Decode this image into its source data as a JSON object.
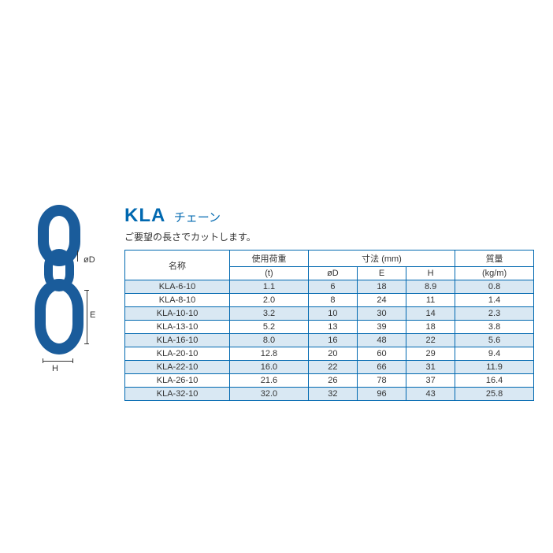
{
  "title": {
    "code": "KLA",
    "sub": "チェーン"
  },
  "subtitle": "ご要望の長さでカットします。",
  "diagram": {
    "phiD": "øD",
    "E": "E",
    "H": "H"
  },
  "table": {
    "headers": {
      "name": "名称",
      "load": "使用荷重",
      "load_unit": "(t)",
      "dims": "寸法 (mm)",
      "phiD": "øD",
      "E": "E",
      "H": "H",
      "mass": "質量",
      "mass_unit": "(kg/m)"
    },
    "rows": [
      {
        "name": "KLA-6-10",
        "load": "1.1",
        "d": "6",
        "e": "18",
        "h": "8.9",
        "mass": "0.8"
      },
      {
        "name": "KLA-8-10",
        "load": "2.0",
        "d": "8",
        "e": "24",
        "h": "11",
        "mass": "1.4"
      },
      {
        "name": "KLA-10-10",
        "load": "3.2",
        "d": "10",
        "e": "30",
        "h": "14",
        "mass": "2.3"
      },
      {
        "name": "KLA-13-10",
        "load": "5.2",
        "d": "13",
        "e": "39",
        "h": "18",
        "mass": "3.8"
      },
      {
        "name": "KLA-16-10",
        "load": "8.0",
        "d": "16",
        "e": "48",
        "h": "22",
        "mass": "5.6"
      },
      {
        "name": "KLA-20-10",
        "load": "12.8",
        "d": "20",
        "e": "60",
        "h": "29",
        "mass": "9.4"
      },
      {
        "name": "KLA-22-10",
        "load": "16.0",
        "d": "22",
        "e": "66",
        "h": "31",
        "mass": "11.9"
      },
      {
        "name": "KLA-26-10",
        "load": "21.6",
        "d": "26",
        "e": "78",
        "h": "37",
        "mass": "16.4"
      },
      {
        "name": "KLA-32-10",
        "load": "32.0",
        "d": "32",
        "e": "96",
        "h": "43",
        "mass": "25.8"
      }
    ],
    "col_widths": [
      "120",
      "90",
      "60",
      "60",
      "60",
      "90"
    ],
    "alt_bg": "#d9e8f3",
    "border_color": "#0068b0"
  }
}
